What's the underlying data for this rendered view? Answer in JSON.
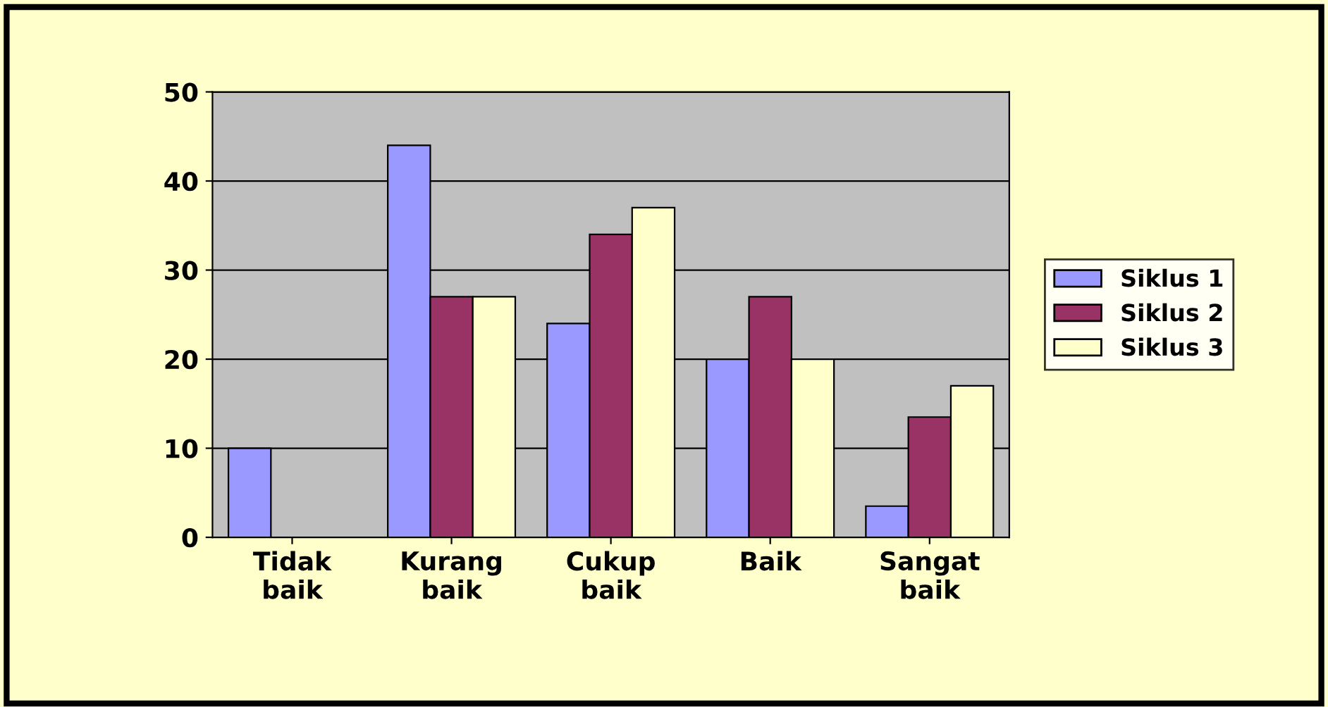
{
  "chart_data": {
    "type": "bar",
    "categories": [
      "Tidak\nbaik",
      "Kurang\nbaik",
      "Cukup\nbaik",
      "Baik",
      "Sangat\nbaik"
    ],
    "series": [
      {
        "name": "Siklus 1",
        "color": "#9999ff",
        "values": [
          10,
          44,
          24,
          20,
          3.5
        ]
      },
      {
        "name": "Siklus 2",
        "color": "#993366",
        "values": [
          null,
          27,
          34,
          27,
          13.5
        ]
      },
      {
        "name": "Siklus 3",
        "color": "#ffffcc",
        "values": [
          null,
          27,
          37,
          20,
          17
        ]
      }
    ],
    "ylim": [
      0,
      50
    ],
    "yticks": [
      0,
      10,
      20,
      30,
      40,
      50
    ],
    "grid": "y",
    "legend": "right"
  }
}
